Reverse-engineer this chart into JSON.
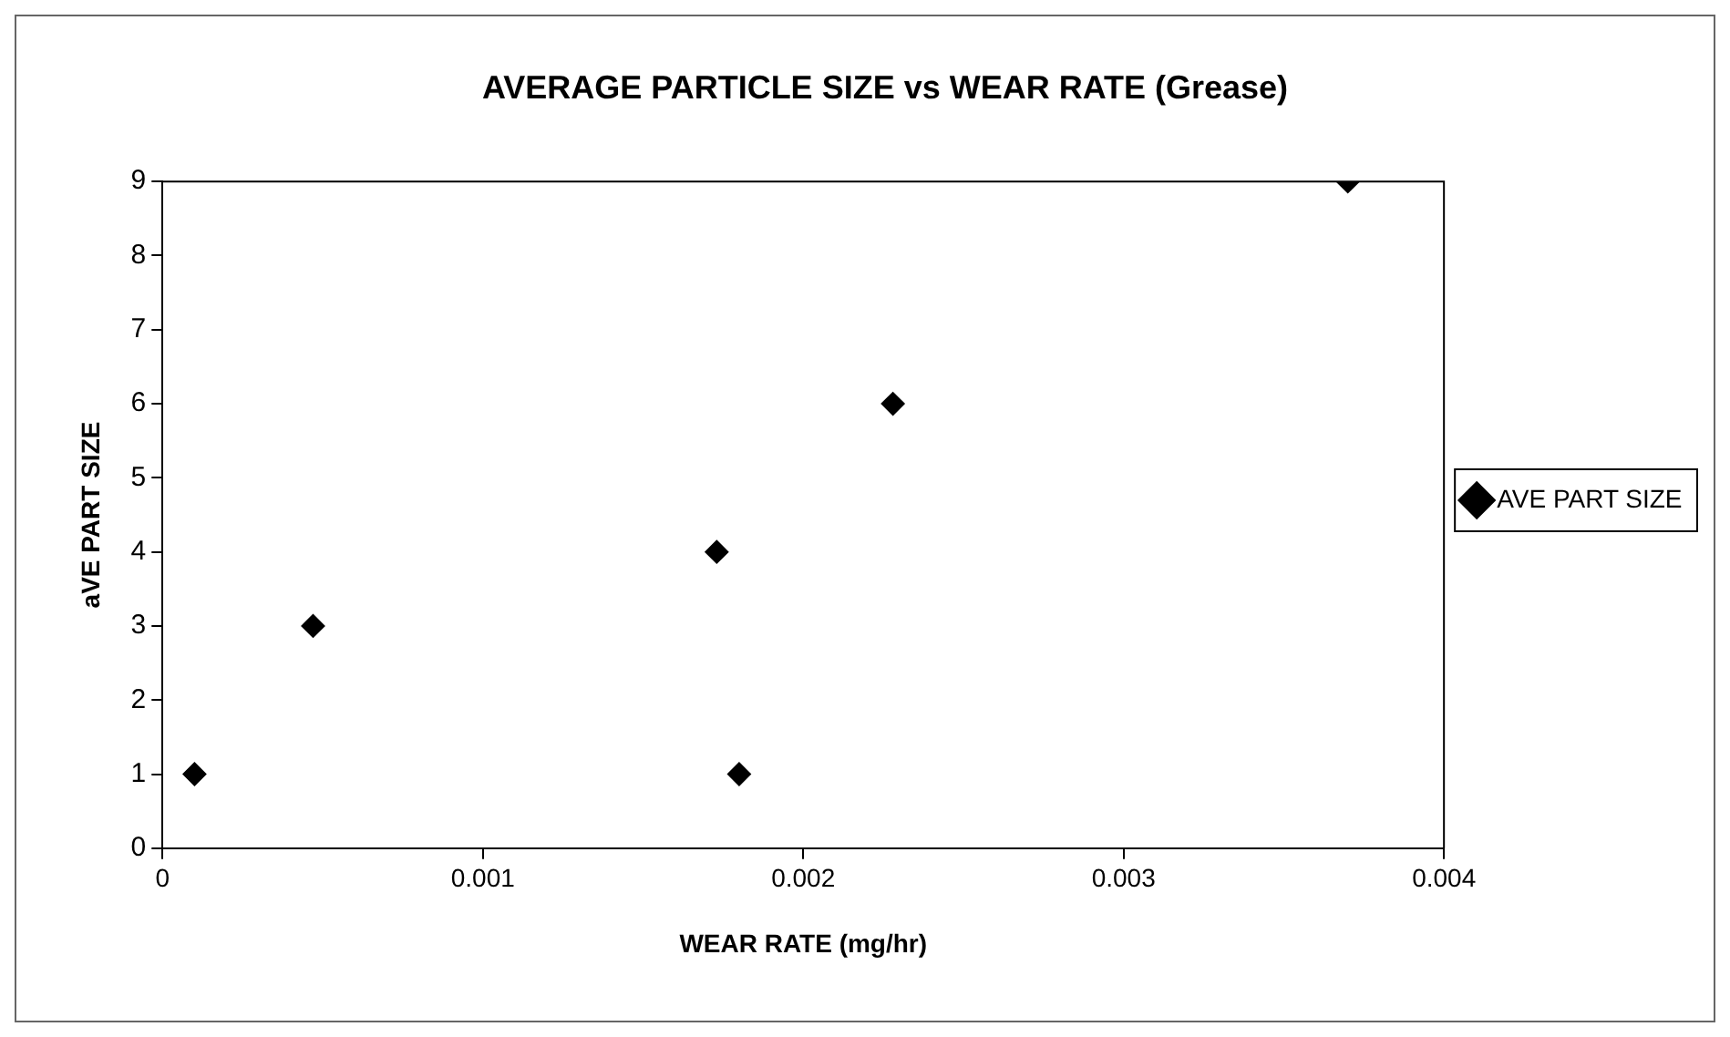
{
  "chart_data": {
    "type": "scatter",
    "title": "AVERAGE PARTICLE SIZE vs WEAR RATE (Grease)",
    "xlabel": "WEAR RATE (mg/hr)",
    "ylabel": "aVE PART SIZE",
    "x": [
      0.0001,
      0.00047,
      0.00173,
      0.0018,
      0.00228,
      0.0037
    ],
    "series": [
      {
        "name": "AVE PART SIZE",
        "color": "#000000",
        "values": [
          1,
          3,
          4,
          1,
          6,
          9
        ]
      }
    ],
    "xlim": [
      0,
      0.004
    ],
    "xticks": [
      0,
      0.001,
      0.002,
      0.003,
      0.004
    ],
    "ylim": [
      0,
      9
    ],
    "yticks": [
      0,
      1,
      2,
      3,
      4,
      5,
      6,
      7,
      8,
      9
    ],
    "grid": false,
    "legend": "right",
    "marker": "diamond"
  }
}
